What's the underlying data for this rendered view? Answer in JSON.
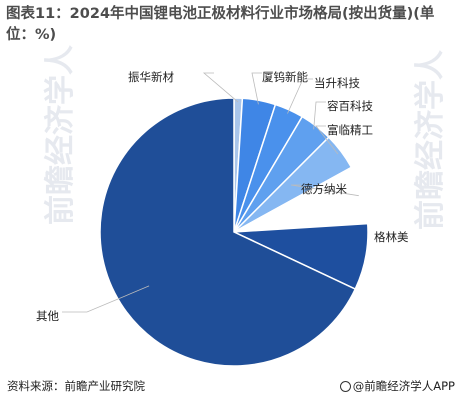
{
  "title": "图表11：2024年中国锂电池正极材料行业市场格局(按出货量)(单位：%)",
  "footer": {
    "source": "资料来源：前瞻产业研究院",
    "brand": "@前瞻经济学人APP"
  },
  "watermark": "前瞻经济学人",
  "chart_data": {
    "type": "pie",
    "title": "图表11：2024年中国锂电池正极材料行业市场格局(按出货量)(单位：%)",
    "unit": "%",
    "start_angle_deg": 0,
    "direction": "clockwise",
    "slices": [
      {
        "label": "振华新材",
        "value": 1.0,
        "color": "#a9c5ea"
      },
      {
        "label": "厦钨新能",
        "value": 4.0,
        "color": "#3f86e6"
      },
      {
        "label": "当升科技",
        "value": 3.5,
        "color": "#4a91ec"
      },
      {
        "label": "容百科技",
        "value": 4.0,
        "color": "#5fa0ef"
      },
      {
        "label": "富临精工",
        "value": 4.5,
        "color": "#85b7f2"
      },
      {
        "label": "德方纳米",
        "value": 7.0,
        "color": "#ffffff"
      },
      {
        "label": "格林美",
        "value": 8.0,
        "color": "#1e4f9f"
      },
      {
        "label": "其他",
        "value": 68.0,
        "color": "#1f4e98"
      }
    ],
    "legend": "none",
    "data_labels": "category names with leader lines"
  }
}
